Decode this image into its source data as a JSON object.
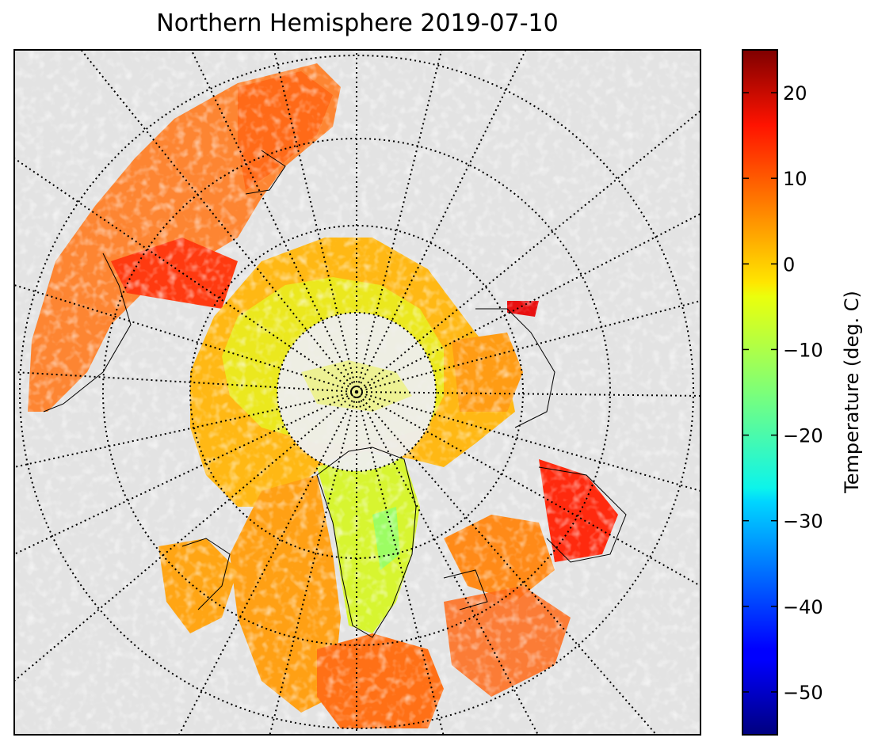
{
  "title": "Northern Hemisphere 2019-07-10",
  "map": {
    "projection": "north polar stereographic",
    "background_color": "#e3e3e3",
    "coastline_color": "#000000",
    "graticule": "dotted"
  },
  "colorbar": {
    "label": "Temperature (deg. C)",
    "colormap": "jet",
    "range": [
      -55,
      25
    ],
    "ticks": [
      {
        "value": 20,
        "label": "20"
      },
      {
        "value": 10,
        "label": "10"
      },
      {
        "value": 0,
        "label": "0"
      },
      {
        "value": -10,
        "label": "−10"
      },
      {
        "value": -20,
        "label": "−20"
      },
      {
        "value": -30,
        "label": "−30"
      },
      {
        "value": -40,
        "label": "−40"
      },
      {
        "value": -50,
        "label": "−50"
      }
    ]
  }
}
